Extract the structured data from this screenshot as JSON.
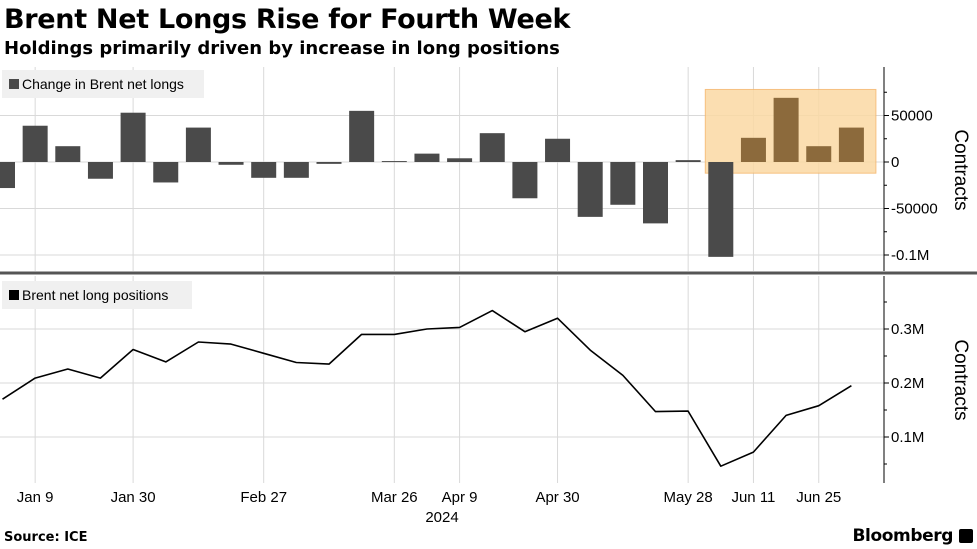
{
  "title": "Brent Net Longs Rise for Fourth Week",
  "subtitle": "Holdings primarily driven by increase in long positions",
  "source": "Source: ICE",
  "brand": "Bloomberg",
  "colors": {
    "bar": "#4a4a4a",
    "highlight_bar": "#8c6a3c",
    "highlight_box": "#fbd9a4",
    "line": "#000000",
    "grid": "#d9d9d9"
  },
  "chart_data": [
    {
      "type": "bar",
      "legend": "Change in Brent net longs",
      "ylabel": "Contracts",
      "ylim": [
        -110000,
        100000
      ],
      "yticks": [
        50000,
        0,
        -50000,
        -100000
      ],
      "ytick_labels": [
        "50000",
        "0",
        "-50000",
        "-0.1M"
      ],
      "x": [
        "2024-01-02",
        "2024-01-09",
        "2024-01-16",
        "2024-01-23",
        "2024-01-30",
        "2024-02-06",
        "2024-02-13",
        "2024-02-20",
        "2024-02-27",
        "2024-03-05",
        "2024-03-12",
        "2024-03-19",
        "2024-03-26",
        "2024-04-02",
        "2024-04-09",
        "2024-04-16",
        "2024-04-23",
        "2024-04-30",
        "2024-05-07",
        "2024-05-14",
        "2024-05-21",
        "2024-05-28",
        "2024-06-04",
        "2024-06-11",
        "2024-06-18",
        "2024-06-25",
        "2024-07-02"
      ],
      "values": [
        -28000,
        39000,
        17000,
        -18000,
        53000,
        -22000,
        37000,
        -3000,
        -17000,
        -17000,
        -2000,
        55000,
        1000,
        9000,
        4000,
        31000,
        -39000,
        25000,
        -59000,
        -46000,
        -66000,
        2000,
        -102000,
        26000,
        69000,
        17000,
        37000
      ],
      "highlight_last": 4,
      "highlight_range": [
        "2024-06-04",
        "2024-07-02"
      ]
    },
    {
      "type": "line",
      "legend": "Brent net long positions",
      "ylabel": "Contracts",
      "ylim": [
        0.02,
        0.38
      ],
      "yticks": [
        0.3,
        0.2,
        0.1
      ],
      "ytick_labels": [
        "0.3M",
        "0.2M",
        "0.1M"
      ],
      "x": [
        "2024-01-02",
        "2024-01-09",
        "2024-01-16",
        "2024-01-23",
        "2024-01-30",
        "2024-02-06",
        "2024-02-13",
        "2024-02-20",
        "2024-02-27",
        "2024-03-05",
        "2024-03-12",
        "2024-03-19",
        "2024-03-26",
        "2024-04-02",
        "2024-04-09",
        "2024-04-16",
        "2024-04-23",
        "2024-04-30",
        "2024-05-07",
        "2024-05-14",
        "2024-05-21",
        "2024-05-28",
        "2024-06-04",
        "2024-06-11",
        "2024-06-18",
        "2024-06-25",
        "2024-07-02"
      ],
      "values": [
        0.17,
        0.209,
        0.226,
        0.209,
        0.262,
        0.239,
        0.276,
        0.272,
        0.255,
        0.238,
        0.235,
        0.29,
        0.29,
        0.3,
        0.303,
        0.334,
        0.295,
        0.32,
        0.261,
        0.214,
        0.147,
        0.148,
        0.046,
        0.072,
        0.14,
        0.158,
        0.195
      ]
    }
  ],
  "x_axis": {
    "tick_labels": [
      {
        "date": "2024-01-09",
        "label": "Jan 9"
      },
      {
        "date": "2024-01-30",
        "label": "Jan 30"
      },
      {
        "date": "2024-02-27",
        "label": "Feb 27"
      },
      {
        "date": "2024-03-26",
        "label": "Mar 26"
      },
      {
        "date": "2024-04-09",
        "label": "Apr 9"
      },
      {
        "date": "2024-04-30",
        "label": "Apr 30"
      },
      {
        "date": "2024-05-28",
        "label": "May 28"
      },
      {
        "date": "2024-06-11",
        "label": "Jun 11"
      },
      {
        "date": "2024-06-25",
        "label": "Jun 25"
      }
    ],
    "year_label": "2024"
  }
}
